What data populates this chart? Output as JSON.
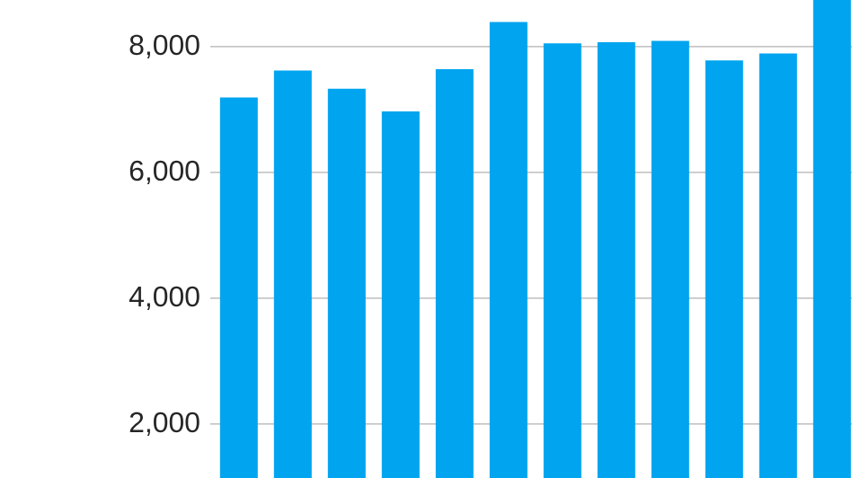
{
  "chart_data": {
    "type": "bar",
    "categories": [
      null,
      null,
      null,
      null,
      null,
      null,
      null,
      null,
      null,
      null,
      null,
      null
    ],
    "values": [
      7190,
      7620,
      7330,
      6970,
      7640,
      8390,
      8050,
      8070,
      8090,
      7780,
      7890,
      8740
    ],
    "color": "#00a4ef",
    "ylim": [
      1140,
      8740
    ],
    "yticks": [
      {
        "value": 2000,
        "label": "2,000"
      },
      {
        "value": 4000,
        "label": "4,000"
      },
      {
        "value": 6000,
        "label": "6,000"
      },
      {
        "value": 8000,
        "label": "8,000"
      }
    ],
    "grid": "y",
    "tick_labels": "y"
  }
}
